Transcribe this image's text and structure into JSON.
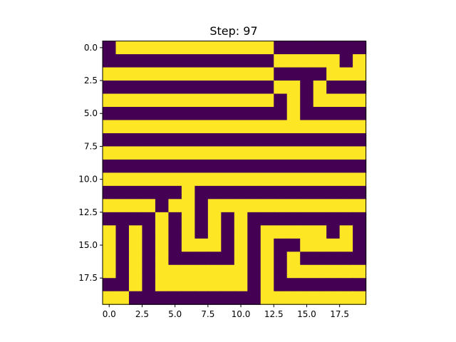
{
  "chart_data": {
    "type": "heatmap",
    "title": "Step: 97",
    "xlabel": "",
    "ylabel": "",
    "colormap": "viridis",
    "colors": {
      "low": "#440154",
      "high": "#fde725"
    },
    "xlim": [
      -0.5,
      19.5
    ],
    "ylim": [
      19.5,
      -0.5
    ],
    "x_ticks": [
      0.0,
      2.5,
      5.0,
      7.5,
      10.0,
      12.5,
      15.0,
      17.5
    ],
    "x_tick_labels": [
      "0.0",
      "2.5",
      "5.0",
      "7.5",
      "10.0",
      "12.5",
      "15.0",
      "17.5"
    ],
    "y_ticks": [
      0.0,
      2.5,
      5.0,
      7.5,
      10.0,
      12.5,
      15.0,
      17.5
    ],
    "y_tick_labels": [
      "0.0",
      "2.5",
      "5.0",
      "7.5",
      "10.0",
      "12.5",
      "15.0",
      "17.5"
    ],
    "grid": false,
    "values": [
      [
        0,
        1,
        1,
        1,
        1,
        1,
        1,
        1,
        1,
        1,
        1,
        1,
        1,
        0,
        0,
        0,
        0,
        0,
        0,
        0
      ],
      [
        0,
        0,
        0,
        0,
        0,
        0,
        0,
        0,
        0,
        0,
        0,
        0,
        0,
        1,
        1,
        1,
        1,
        1,
        0,
        1
      ],
      [
        1,
        1,
        1,
        1,
        1,
        1,
        1,
        1,
        1,
        1,
        1,
        1,
        1,
        0,
        0,
        0,
        0,
        1,
        1,
        1
      ],
      [
        0,
        0,
        0,
        0,
        0,
        0,
        0,
        0,
        0,
        0,
        0,
        0,
        0,
        1,
        1,
        0,
        1,
        0,
        0,
        0
      ],
      [
        1,
        1,
        1,
        1,
        1,
        1,
        1,
        1,
        1,
        1,
        1,
        1,
        1,
        0,
        1,
        0,
        1,
        1,
        1,
        1
      ],
      [
        0,
        0,
        0,
        0,
        0,
        0,
        0,
        0,
        0,
        0,
        0,
        0,
        0,
        0,
        1,
        0,
        0,
        0,
        0,
        0
      ],
      [
        1,
        1,
        1,
        1,
        1,
        1,
        1,
        1,
        1,
        1,
        1,
        1,
        1,
        1,
        1,
        1,
        1,
        1,
        1,
        1
      ],
      [
        0,
        0,
        0,
        0,
        0,
        0,
        0,
        0,
        0,
        0,
        0,
        0,
        0,
        0,
        0,
        0,
        0,
        0,
        0,
        0
      ],
      [
        1,
        1,
        1,
        1,
        1,
        1,
        1,
        1,
        1,
        1,
        1,
        1,
        1,
        1,
        1,
        1,
        1,
        1,
        1,
        1
      ],
      [
        0,
        0,
        0,
        0,
        0,
        0,
        0,
        0,
        0,
        0,
        0,
        0,
        0,
        0,
        0,
        0,
        0,
        0,
        0,
        0
      ],
      [
        1,
        1,
        1,
        1,
        1,
        1,
        1,
        1,
        1,
        1,
        1,
        1,
        1,
        1,
        1,
        1,
        1,
        1,
        1,
        1
      ],
      [
        0,
        0,
        0,
        0,
        0,
        0,
        1,
        0,
        0,
        0,
        0,
        0,
        0,
        0,
        0,
        0,
        0,
        0,
        0,
        0
      ],
      [
        1,
        1,
        1,
        1,
        0,
        1,
        1,
        0,
        1,
        1,
        1,
        1,
        1,
        1,
        1,
        1,
        1,
        1,
        1,
        1
      ],
      [
        0,
        0,
        0,
        0,
        1,
        0,
        1,
        0,
        1,
        0,
        1,
        0,
        0,
        0,
        0,
        0,
        0,
        0,
        0,
        0
      ],
      [
        1,
        0,
        1,
        0,
        1,
        0,
        1,
        0,
        1,
        0,
        1,
        0,
        1,
        1,
        1,
        1,
        1,
        0,
        1,
        0
      ],
      [
        1,
        0,
        1,
        0,
        1,
        0,
        1,
        1,
        1,
        0,
        1,
        0,
        1,
        0,
        0,
        1,
        1,
        1,
        1,
        0
      ],
      [
        1,
        0,
        1,
        0,
        1,
        0,
        0,
        0,
        0,
        0,
        1,
        0,
        1,
        0,
        1,
        0,
        0,
        0,
        0,
        0
      ],
      [
        1,
        0,
        1,
        0,
        1,
        1,
        1,
        1,
        1,
        1,
        1,
        0,
        1,
        0,
        1,
        1,
        1,
        1,
        1,
        1
      ],
      [
        0,
        0,
        1,
        0,
        1,
        1,
        1,
        1,
        1,
        1,
        1,
        0,
        1,
        0,
        0,
        0,
        0,
        0,
        0,
        0
      ],
      [
        1,
        1,
        0,
        0,
        0,
        0,
        0,
        0,
        0,
        0,
        0,
        0,
        1,
        1,
        1,
        1,
        1,
        1,
        1,
        1
      ]
    ]
  }
}
